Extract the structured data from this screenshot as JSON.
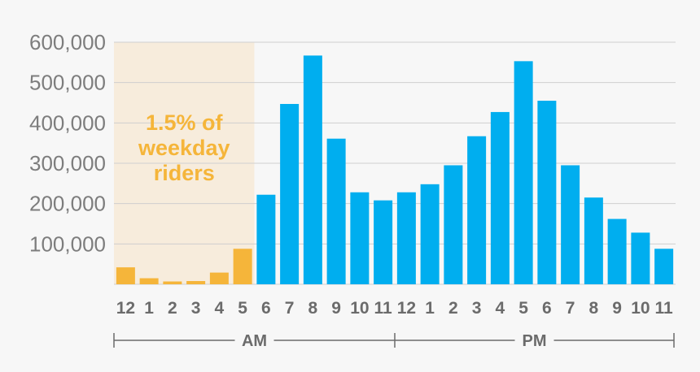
{
  "chart_data": {
    "type": "bar",
    "title": "",
    "xlabel": "",
    "ylabel": "",
    "ylim": [
      0,
      600000
    ],
    "yticks": [
      100000,
      200000,
      300000,
      400000,
      500000,
      600000
    ],
    "ytick_labels": [
      "100,000",
      "200,000",
      "300,000",
      "400,000",
      "500,000",
      "600,000"
    ],
    "grid": true,
    "categories": [
      "12",
      "1",
      "2",
      "3",
      "4",
      "5",
      "6",
      "7",
      "8",
      "9",
      "10",
      "11",
      "12",
      "1",
      "2",
      "3",
      "4",
      "5",
      "6",
      "7",
      "8",
      "9",
      "10",
      "11"
    ],
    "values": [
      42000,
      15000,
      7000,
      8000,
      29000,
      88000,
      222000,
      447000,
      567000,
      361000,
      228000,
      208000,
      228000,
      248000,
      295000,
      367000,
      427000,
      553000,
      455000,
      295000,
      215000,
      162000,
      128000,
      88000
    ],
    "colors": {
      "highlight": "#f5b53a",
      "main": "#00aeef",
      "highlight_band": "#f7ecdc",
      "annotation_text": "#f5b53a"
    },
    "highlight_range": [
      0,
      5
    ],
    "annotation": {
      "lines": [
        "1.5% of",
        "weekday",
        "riders"
      ]
    },
    "periods": [
      {
        "label": "AM",
        "from": 0,
        "to": 11
      },
      {
        "label": "PM",
        "from": 12,
        "to": 23
      }
    ]
  }
}
